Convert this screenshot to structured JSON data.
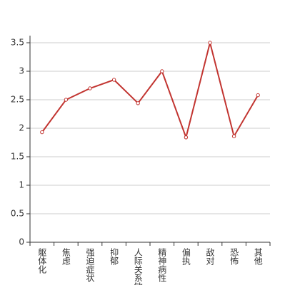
{
  "chart_data": {
    "type": "line",
    "categories": [
      "躯体化",
      "焦虑",
      "强迫症状",
      "抑郁",
      "人际关系敏感",
      "精神病性",
      "偏执",
      "敌对",
      "恐怖",
      "其他"
    ],
    "values": [
      1.93,
      2.5,
      2.7,
      2.85,
      2.44,
      3.0,
      1.84,
      3.5,
      1.86,
      2.58
    ],
    "color": "#c23531",
    "ylim": [
      0,
      3.5
    ],
    "yticks": [
      0,
      0.5,
      1,
      1.5,
      2,
      2.5,
      3,
      3.5
    ],
    "grid": true
  }
}
